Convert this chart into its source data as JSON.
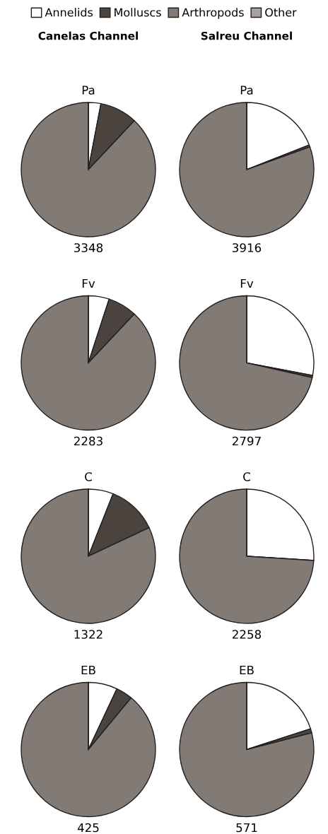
{
  "chart_data": [
    {
      "type": "pie",
      "subtitle": "Canelas Channel",
      "title": "Pa",
      "categories": [
        "Annelids",
        "Molluscs",
        "Arthropods",
        "Other"
      ],
      "values": [
        3,
        9,
        88,
        0
      ],
      "colors": [
        "#ffffff",
        "#4a433e",
        "#817a75",
        "#a9a19e"
      ],
      "legend": "top",
      "annotations": [
        "3348"
      ]
    },
    {
      "type": "pie",
      "subtitle": "Salreu Channel",
      "title": "Pa",
      "categories": [
        null,
        null,
        null,
        null
      ],
      "values": [
        19,
        0.5,
        80.5,
        0
      ],
      "colors": [
        "#ffffff",
        "#4a433e",
        "#817a75",
        "#a9a19e"
      ],
      "annotations": [
        "3916"
      ]
    },
    {
      "type": "pie",
      "title": "Fv",
      "categories": [
        null,
        null,
        null,
        null
      ],
      "values": [
        5,
        7,
        88,
        0
      ],
      "colors": [
        "#ffffff",
        "#4a433e",
        "#817a75",
        "#a9a19e"
      ],
      "annotations": [
        "2283"
      ]
    },
    {
      "type": "pie",
      "title": "Fv",
      "categories": [
        null,
        null,
        null,
        null
      ],
      "values": [
        28,
        0.5,
        71.5,
        0
      ],
      "colors": [
        "#ffffff",
        "#4a433e",
        "#817a75",
        "#a9a19e"
      ],
      "annotations": [
        "2797"
      ]
    },
    {
      "type": "pie",
      "title": "C",
      "categories": [
        null,
        null,
        null,
        null
      ],
      "values": [
        6,
        12,
        82,
        0
      ],
      "colors": [
        "#ffffff",
        "#4a433e",
        "#817a75",
        "#a9a19e"
      ],
      "annotations": [
        "1322"
      ]
    },
    {
      "type": "pie",
      "title": "C",
      "categories": [
        null,
        null,
        null,
        null
      ],
      "values": [
        26,
        0,
        74,
        0
      ],
      "colors": [
        "#ffffff",
        "#4a433e",
        "#817a75",
        "#a9a19e"
      ],
      "annotations": [
        "2258"
      ]
    },
    {
      "type": "pie",
      "title": "EB",
      "categories": [
        null,
        null,
        null,
        null
      ],
      "values": [
        7,
        4,
        89,
        0
      ],
      "colors": [
        "#ffffff",
        "#4a433e",
        "#817a75",
        "#a9a19e"
      ],
      "annotations": [
        "425"
      ]
    },
    {
      "type": "pie",
      "title": "EB",
      "categories": [
        null,
        null,
        null,
        null
      ],
      "values": [
        20,
        1,
        79,
        0
      ],
      "colors": [
        "#ffffff",
        "#4a433e",
        "#817a75",
        "#a9a19e"
      ],
      "annotations": [
        "571"
      ]
    }
  ]
}
